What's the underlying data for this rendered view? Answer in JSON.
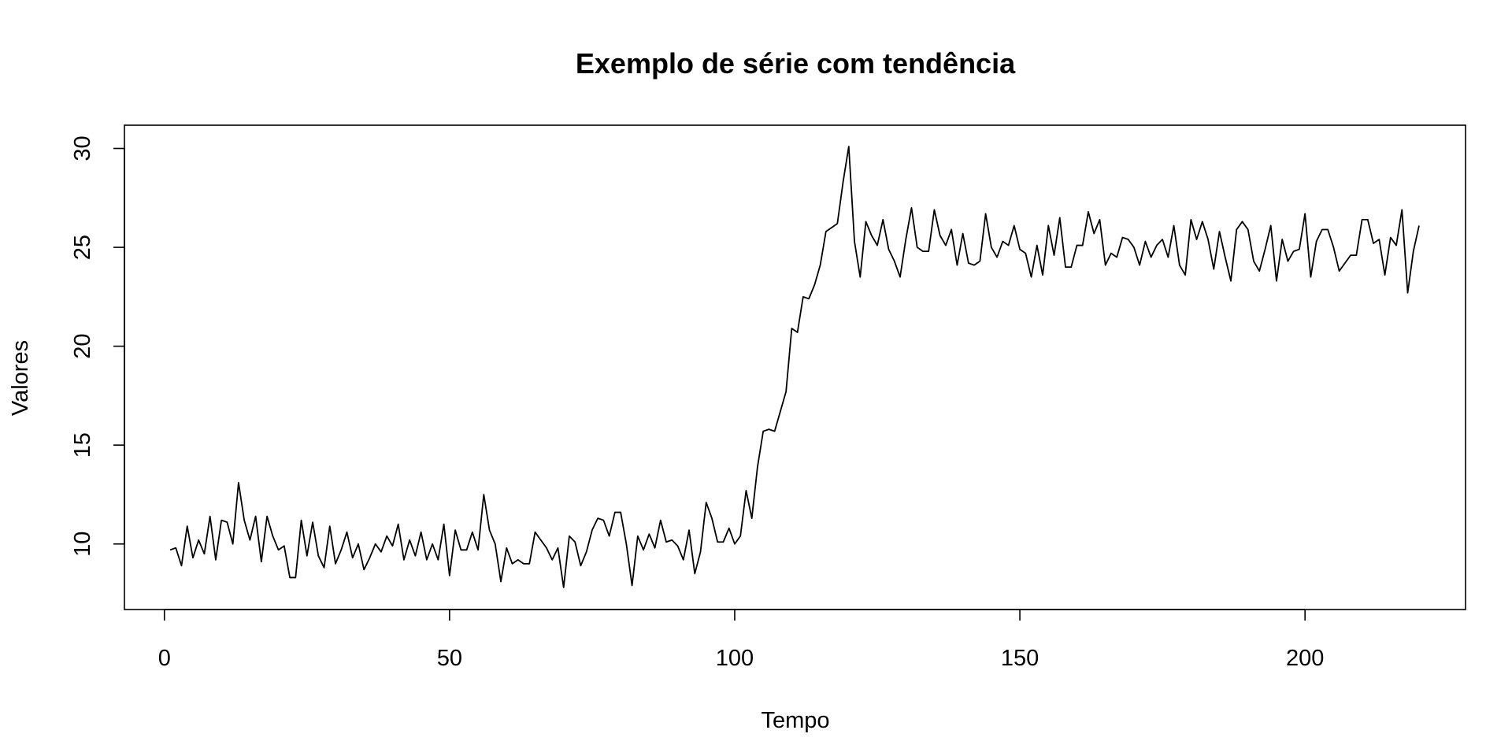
{
  "chart_data": {
    "type": "line",
    "title": "Exemplo de série com tendência",
    "xlabel": "Tempo",
    "ylabel": "Valores",
    "xlim": [
      1,
      220
    ],
    "ylim": [
      7.8,
      30.1
    ],
    "x_ticks": [
      0,
      50,
      100,
      150,
      200
    ],
    "y_ticks": [
      10,
      15,
      20,
      25,
      30
    ],
    "grid": false,
    "legend": "none",
    "line_color": "#000000",
    "series": [
      {
        "x_start": 1,
        "values": [
          9.7,
          9.8,
          8.9,
          10.9,
          9.3,
          10.2,
          9.5,
          11.4,
          9.2,
          11.2,
          11.1,
          10.0,
          13.1,
          11.2,
          10.2,
          11.4,
          9.1,
          11.4,
          10.4,
          9.7,
          9.9,
          8.3,
          8.3,
          11.2,
          9.4,
          11.1,
          9.4,
          8.8,
          10.9,
          9.0,
          9.7,
          10.6,
          9.3,
          10.0,
          8.7,
          9.3,
          10.0,
          9.6,
          10.4,
          9.9,
          11.0,
          9.2,
          10.2,
          9.4,
          10.6,
          9.2,
          10.0,
          9.2,
          11.0,
          8.4,
          10.7,
          9.7,
          9.7,
          10.6,
          9.7,
          12.5,
          10.7,
          10.0,
          8.1,
          9.8,
          9.0,
          9.2,
          9.0,
          9.0,
          10.6,
          10.2,
          9.8,
          9.2,
          9.8,
          7.8,
          10.4,
          10.1,
          8.9,
          9.6,
          10.7,
          11.3,
          11.2,
          10.4,
          11.6,
          11.6,
          10.0,
          7.9,
          10.4,
          9.7,
          10.5,
          9.8,
          11.2,
          10.1,
          10.2,
          9.9,
          9.2,
          10.7,
          8.5,
          9.6,
          12.1,
          11.3,
          10.1,
          10.1,
          10.8,
          10.0,
          10.4,
          12.7,
          11.3,
          13.9,
          15.7,
          15.8,
          15.7,
          16.7,
          17.7,
          20.9,
          20.7,
          22.5,
          22.4,
          23.1,
          24.1,
          25.8,
          26.0,
          26.2,
          28.3,
          30.1,
          25.3,
          23.5,
          26.3,
          25.6,
          25.1,
          26.4,
          24.9,
          24.3,
          23.5,
          25.4,
          27.0,
          25.0,
          24.8,
          24.8,
          26.9,
          25.6,
          25.1,
          25.9,
          24.1,
          25.7,
          24.2,
          24.1,
          24.3,
          26.7,
          25.0,
          24.5,
          25.3,
          25.1,
          26.1,
          24.9,
          24.7,
          23.5,
          25.1,
          23.6,
          26.1,
          24.6,
          26.5,
          24.0,
          24.0,
          25.1,
          25.1,
          26.8,
          25.7,
          26.4,
          24.1,
          24.7,
          24.5,
          25.5,
          25.4,
          25.0,
          24.1,
          25.3,
          24.5,
          25.1,
          25.4,
          24.5,
          26.1,
          24.1,
          23.6,
          26.4,
          25.4,
          26.3,
          25.4,
          23.9,
          25.8,
          24.5,
          23.3,
          25.9,
          26.3,
          25.9,
          24.3,
          23.8,
          24.9,
          26.1,
          23.3,
          25.4,
          24.3,
          24.8,
          24.9,
          26.7,
          23.5,
          25.3,
          25.9,
          25.9,
          25.0,
          23.8,
          24.2,
          24.6,
          24.6,
          26.4,
          26.4,
          25.2,
          25.4,
          23.6,
          25.5,
          25.1,
          26.9,
          22.7,
          24.8,
          26.1
        ]
      }
    ]
  }
}
